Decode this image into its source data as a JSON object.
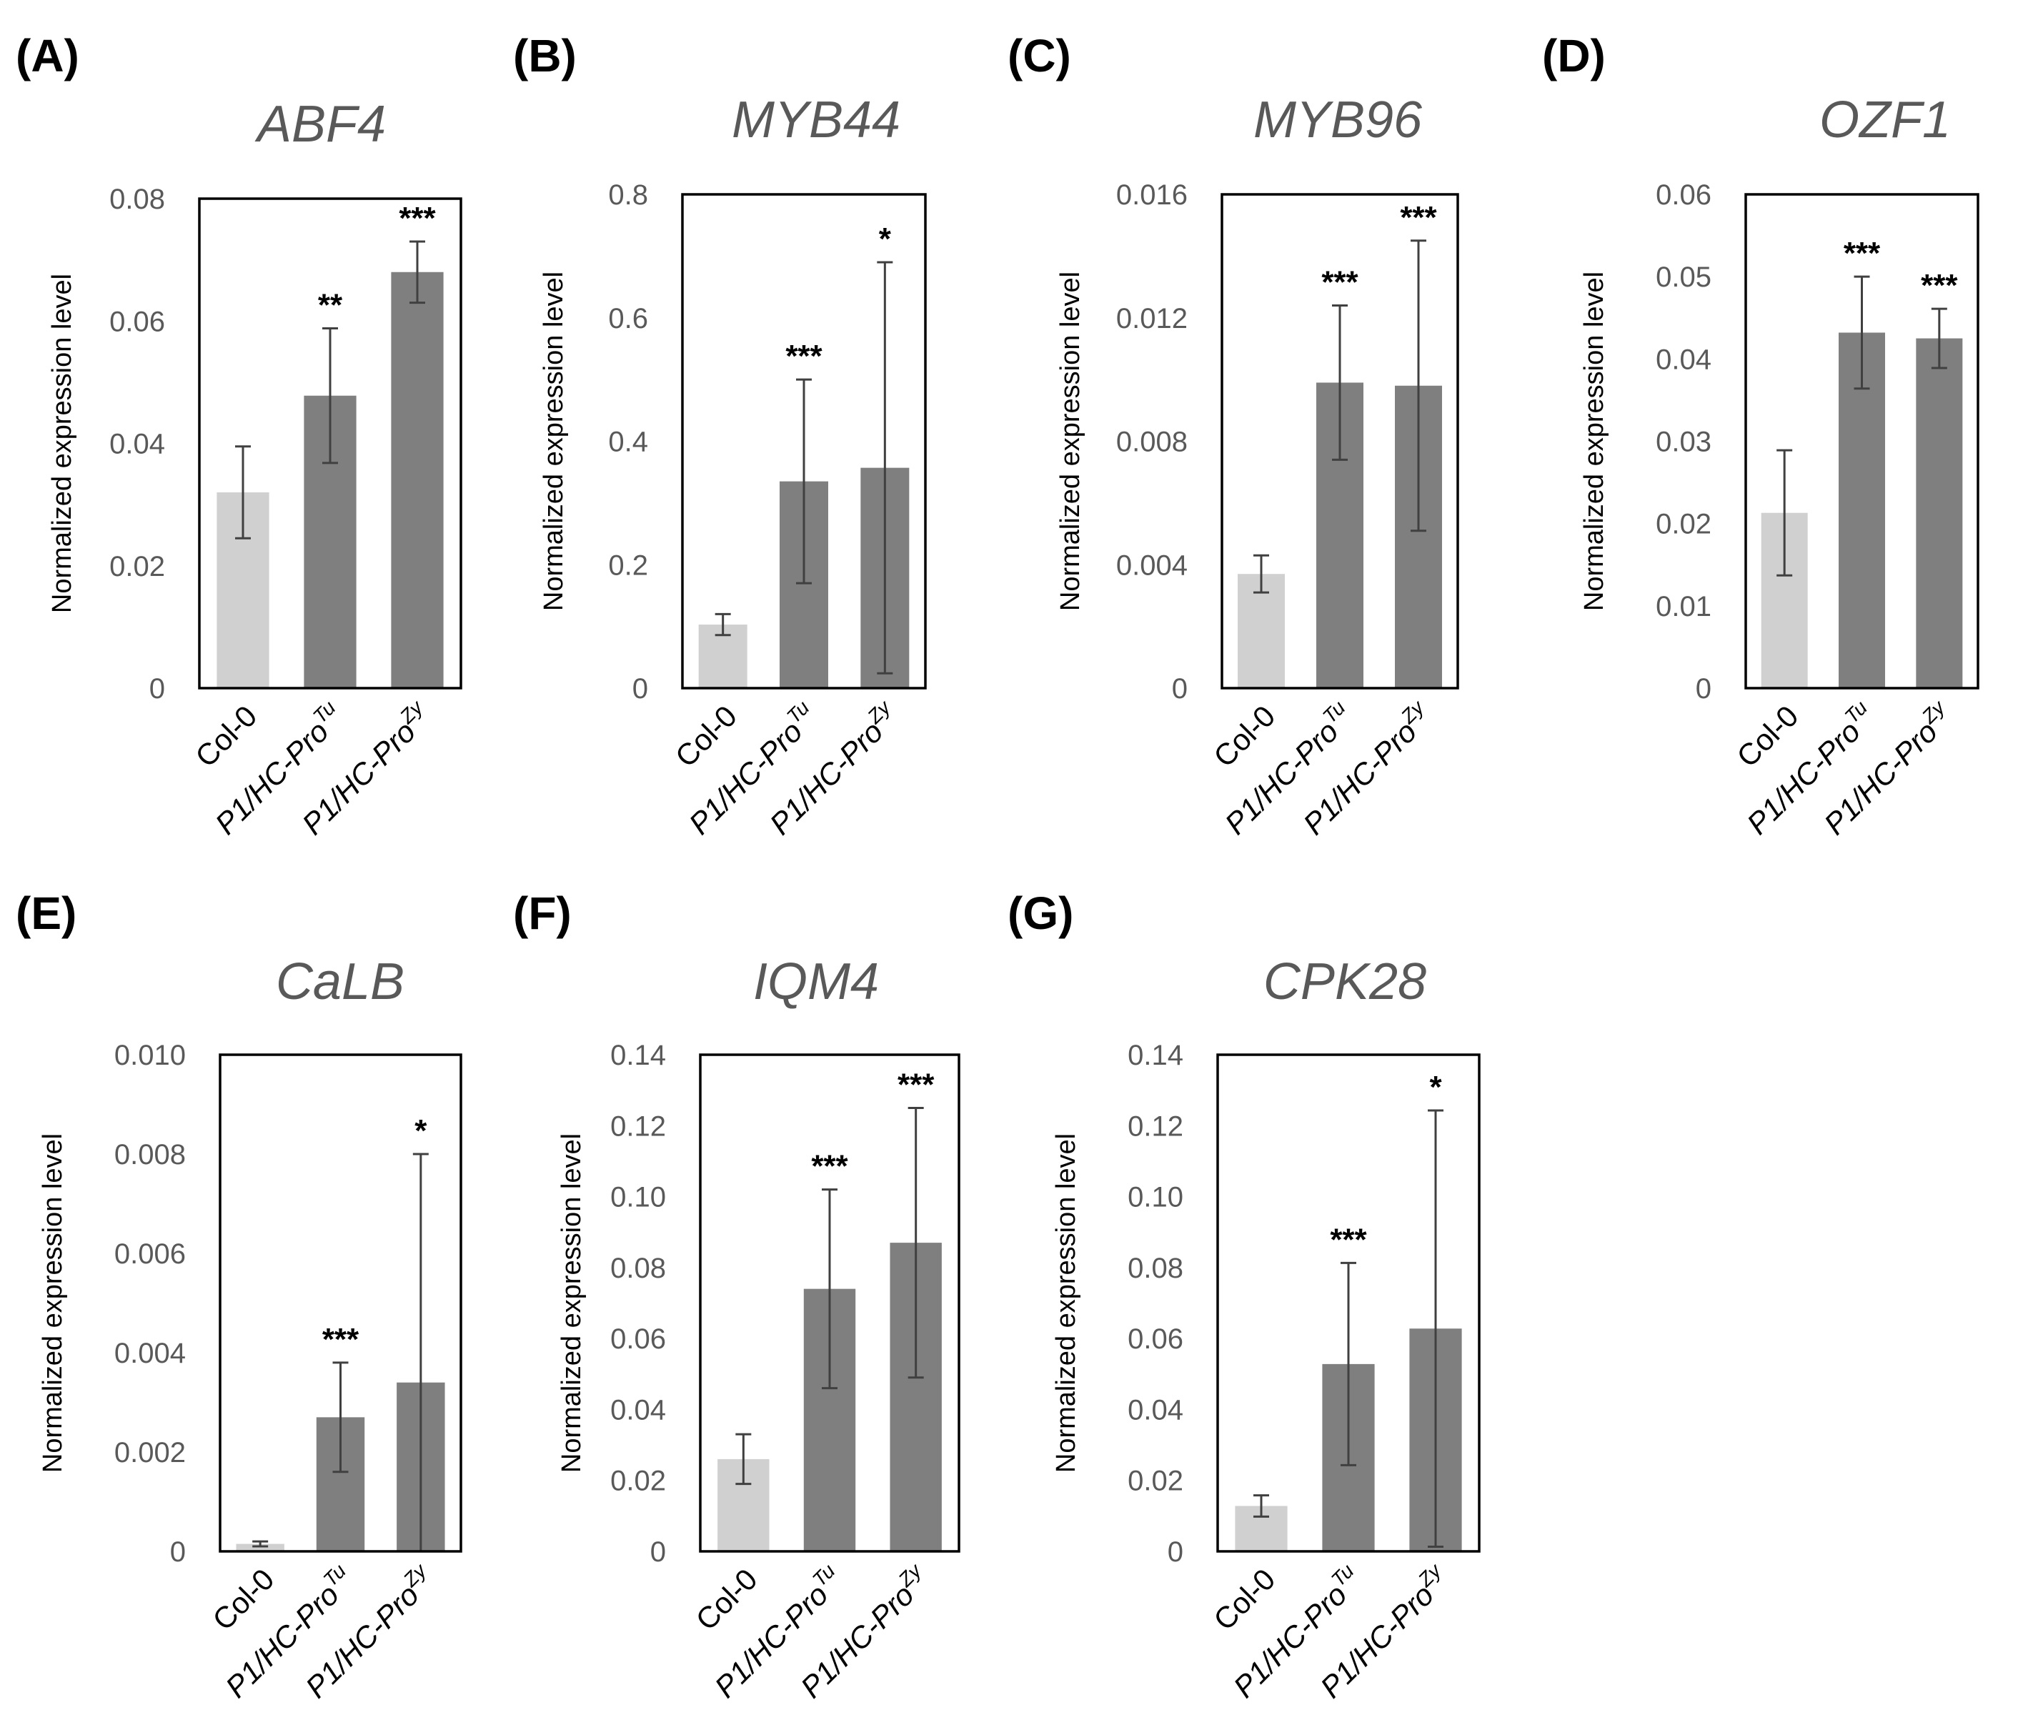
{
  "figure": {
    "chart_data": [
      {
        "panel": "(A)",
        "type": "bar",
        "title": "ABF4",
        "ylabel": "Normalized expression level",
        "ylim": [
          0,
          0.08
        ],
        "yticks": [
          "0",
          "0.02",
          "0.04",
          "0.06",
          "0.08"
        ],
        "categories": [
          "Col-0",
          "P1/HC-Pro",
          "P1/HC-Pro"
        ],
        "superscripts": [
          "",
          "Tu",
          "Zy"
        ],
        "values": [
          0.032,
          0.0478,
          0.068
        ],
        "errors": [
          0.0075,
          0.011,
          0.005
        ],
        "significance": [
          "",
          "**",
          "***"
        ],
        "colors": [
          "#d0d0d0",
          "#7f7f7f",
          "#7f7f7f"
        ]
      },
      {
        "panel": "(B)",
        "type": "bar",
        "title": "MYB44",
        "ylabel": "Normalized expression level",
        "ylim": [
          0,
          0.8
        ],
        "yticks": [
          "0",
          "0.2",
          "0.4",
          "0.6",
          "0.8"
        ],
        "categories": [
          "Col-0",
          "P1/HC-Pro",
          "P1/HC-Pro"
        ],
        "superscripts": [
          "",
          "Tu",
          "Zy"
        ],
        "values": [
          0.103,
          0.335,
          0.357
        ],
        "errors": [
          0.017,
          0.165,
          0.333
        ],
        "significance": [
          "",
          "***",
          "*"
        ],
        "colors": [
          "#d0d0d0",
          "#7f7f7f",
          "#7f7f7f"
        ]
      },
      {
        "panel": "(C)",
        "type": "bar",
        "title": "MYB96",
        "ylabel": "Normalized expression level",
        "ylim": [
          0,
          0.016
        ],
        "yticks": [
          "0",
          "0.004",
          "0.008",
          "0.012",
          "0.016"
        ],
        "categories": [
          "Col-0",
          "P1/HC-Pro",
          "P1/HC-Pro"
        ],
        "superscripts": [
          "",
          "Tu",
          "Zy"
        ],
        "values": [
          0.0037,
          0.0099,
          0.0098
        ],
        "errors": [
          0.0006,
          0.0025,
          0.0047
        ],
        "significance": [
          "",
          "***",
          "***"
        ],
        "colors": [
          "#d0d0d0",
          "#7f7f7f",
          "#7f7f7f"
        ]
      },
      {
        "panel": "(D)",
        "type": "bar",
        "title": "OZF1",
        "ylabel": "Normalized expression level",
        "ylim": [
          0,
          0.06
        ],
        "yticks": [
          "0",
          "0.01",
          "0.02",
          "0.03",
          "0.04",
          "0.05",
          "0.06"
        ],
        "categories": [
          "Col-0",
          "P1/HC-Pro",
          "P1/HC-Pro"
        ],
        "superscripts": [
          "",
          "Tu",
          "Zy"
        ],
        "values": [
          0.0213,
          0.0432,
          0.0425
        ],
        "errors": [
          0.0076,
          0.0068,
          0.0036
        ],
        "significance": [
          "",
          "***",
          "***"
        ],
        "colors": [
          "#d0d0d0",
          "#7f7f7f",
          "#7f7f7f"
        ]
      },
      {
        "panel": "(E)",
        "type": "bar",
        "title": "CaLB",
        "ylabel": "Normalized expression level",
        "ylim": [
          0,
          0.01
        ],
        "yticks": [
          "0",
          "0.002",
          "0.004",
          "0.006",
          "0.008",
          "0.010"
        ],
        "categories": [
          "Col-0",
          "P1/HC-Pro",
          "P1/HC-Pro"
        ],
        "superscripts": [
          "",
          "Tu",
          "Zy"
        ],
        "values": [
          0.00015,
          0.0027,
          0.0034
        ],
        "errors": [
          5e-05,
          0.0011,
          0.0046
        ],
        "significance": [
          "",
          "***",
          "*"
        ],
        "colors": [
          "#d0d0d0",
          "#7f7f7f",
          "#7f7f7f"
        ]
      },
      {
        "panel": "(F)",
        "type": "bar",
        "title": "IQM4",
        "ylabel": "Normalized expression level",
        "ylim": [
          0,
          0.14
        ],
        "yticks": [
          "0",
          "0.02",
          "0.04",
          "0.06",
          "0.08",
          "0.10",
          "0.12",
          "0.14"
        ],
        "categories": [
          "Col-0",
          "P1/HC-Pro",
          "P1/HC-Pro"
        ],
        "superscripts": [
          "",
          "Tu",
          "Zy"
        ],
        "values": [
          0.026,
          0.074,
          0.087
        ],
        "errors": [
          0.007,
          0.028,
          0.038
        ],
        "significance": [
          "",
          "***",
          "***"
        ],
        "colors": [
          "#d0d0d0",
          "#7f7f7f",
          "#7f7f7f"
        ]
      },
      {
        "panel": "(G)",
        "type": "bar",
        "title": "CPK28",
        "ylabel": "Normalized expression level",
        "ylim": [
          0,
          0.14
        ],
        "yticks": [
          "0",
          "0.02",
          "0.04",
          "0.06",
          "0.08",
          "0.10",
          "0.12",
          "0.14"
        ],
        "categories": [
          "Col-0",
          "P1/HC-Pro",
          "P1/HC-Pro"
        ],
        "superscripts": [
          "",
          "Tu",
          "Zy"
        ],
        "values": [
          0.0128,
          0.0528,
          0.0628
        ],
        "errors": [
          0.003,
          0.0285,
          0.0615
        ],
        "significance": [
          "",
          "***",
          "*"
        ],
        "colors": [
          "#d0d0d0",
          "#7f7f7f",
          "#7f7f7f"
        ]
      }
    ]
  }
}
